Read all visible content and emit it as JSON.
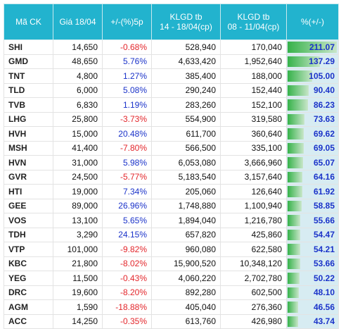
{
  "headers": [
    "Mã CK",
    "Giá 18/04",
    "+/-(%)5p",
    "KLGD tb\n14 - 18/04(cp)",
    "KLGD tb\n08 - 11/04(cp)",
    "%(+/-)"
  ],
  "rows": [
    {
      "code": "SHI",
      "price": "14,650",
      "chg": "-0.68%",
      "vol1": "528,940",
      "vol2": "170,040",
      "pct": "211.07",
      "pct_value": 211.07
    },
    {
      "code": "GMD",
      "price": "48,650",
      "chg": "5.76%",
      "vol1": "4,633,420",
      "vol2": "1,952,640",
      "pct": "137.29",
      "pct_value": 137.29
    },
    {
      "code": "TNT",
      "price": "4,800",
      "chg": "1.27%",
      "vol1": "385,400",
      "vol2": "188,000",
      "pct": "105.00",
      "pct_value": 105.0
    },
    {
      "code": "TLD",
      "price": "6,000",
      "chg": "5.08%",
      "vol1": "290,240",
      "vol2": "152,440",
      "pct": "90.40",
      "pct_value": 90.4
    },
    {
      "code": "TVB",
      "price": "6,830",
      "chg": "1.19%",
      "vol1": "283,260",
      "vol2": "152,100",
      "pct": "86.23",
      "pct_value": 86.23
    },
    {
      "code": "LHG",
      "price": "25,800",
      "chg": "-3.73%",
      "vol1": "554,900",
      "vol2": "319,580",
      "pct": "73.63",
      "pct_value": 73.63
    },
    {
      "code": "HVH",
      "price": "15,000",
      "chg": "20.48%",
      "vol1": "611,700",
      "vol2": "360,640",
      "pct": "69.62",
      "pct_value": 69.62
    },
    {
      "code": "MSH",
      "price": "41,400",
      "chg": "-7.80%",
      "vol1": "566,500",
      "vol2": "335,100",
      "pct": "69.05",
      "pct_value": 69.05
    },
    {
      "code": "HVN",
      "price": "31,000",
      "chg": "5.98%",
      "vol1": "6,053,080",
      "vol2": "3,666,960",
      "pct": "65.07",
      "pct_value": 65.07
    },
    {
      "code": "GVR",
      "price": "24,500",
      "chg": "-5.77%",
      "vol1": "5,183,540",
      "vol2": "3,157,640",
      "pct": "64.16",
      "pct_value": 64.16
    },
    {
      "code": "HTI",
      "price": "19,000",
      "chg": "7.34%",
      "vol1": "205,060",
      "vol2": "126,640",
      "pct": "61.92",
      "pct_value": 61.92
    },
    {
      "code": "GEE",
      "price": "89,000",
      "chg": "26.96%",
      "vol1": "1,748,880",
      "vol2": "1,100,940",
      "pct": "58.85",
      "pct_value": 58.85
    },
    {
      "code": "VOS",
      "price": "13,100",
      "chg": "5.65%",
      "vol1": "1,894,040",
      "vol2": "1,216,780",
      "pct": "55.66",
      "pct_value": 55.66
    },
    {
      "code": "TDH",
      "price": "3,290",
      "chg": "24.15%",
      "vol1": "657,820",
      "vol2": "425,860",
      "pct": "54.47",
      "pct_value": 54.47
    },
    {
      "code": "VTP",
      "price": "101,000",
      "chg": "-9.82%",
      "vol1": "960,080",
      "vol2": "622,580",
      "pct": "54.21",
      "pct_value": 54.21
    },
    {
      "code": "KBC",
      "price": "21,800",
      "chg": "-8.02%",
      "vol1": "15,900,520",
      "vol2": "10,348,120",
      "pct": "53.66",
      "pct_value": 53.66
    },
    {
      "code": "YEG",
      "price": "11,500",
      "chg": "-0.43%",
      "vol1": "4,060,220",
      "vol2": "2,702,780",
      "pct": "50.22",
      "pct_value": 50.22
    },
    {
      "code": "DRC",
      "price": "19,600",
      "chg": "-8.20%",
      "vol1": "892,280",
      "vol2": "602,500",
      "pct": "48.10",
      "pct_value": 48.1
    },
    {
      "code": "AGM",
      "price": "1,590",
      "chg": "-18.88%",
      "vol1": "405,040",
      "vol2": "276,360",
      "pct": "46.56",
      "pct_value": 46.56
    },
    {
      "code": "ACC",
      "price": "14,250",
      "chg": "-0.35%",
      "vol1": "613,760",
      "vol2": "426,980",
      "pct": "43.74",
      "pct_value": 43.74
    }
  ],
  "colors": {
    "header_bg": "#22b3ce",
    "positive": "#1b33c9",
    "negative": "#e3262b",
    "bar": "#36b24a"
  }
}
